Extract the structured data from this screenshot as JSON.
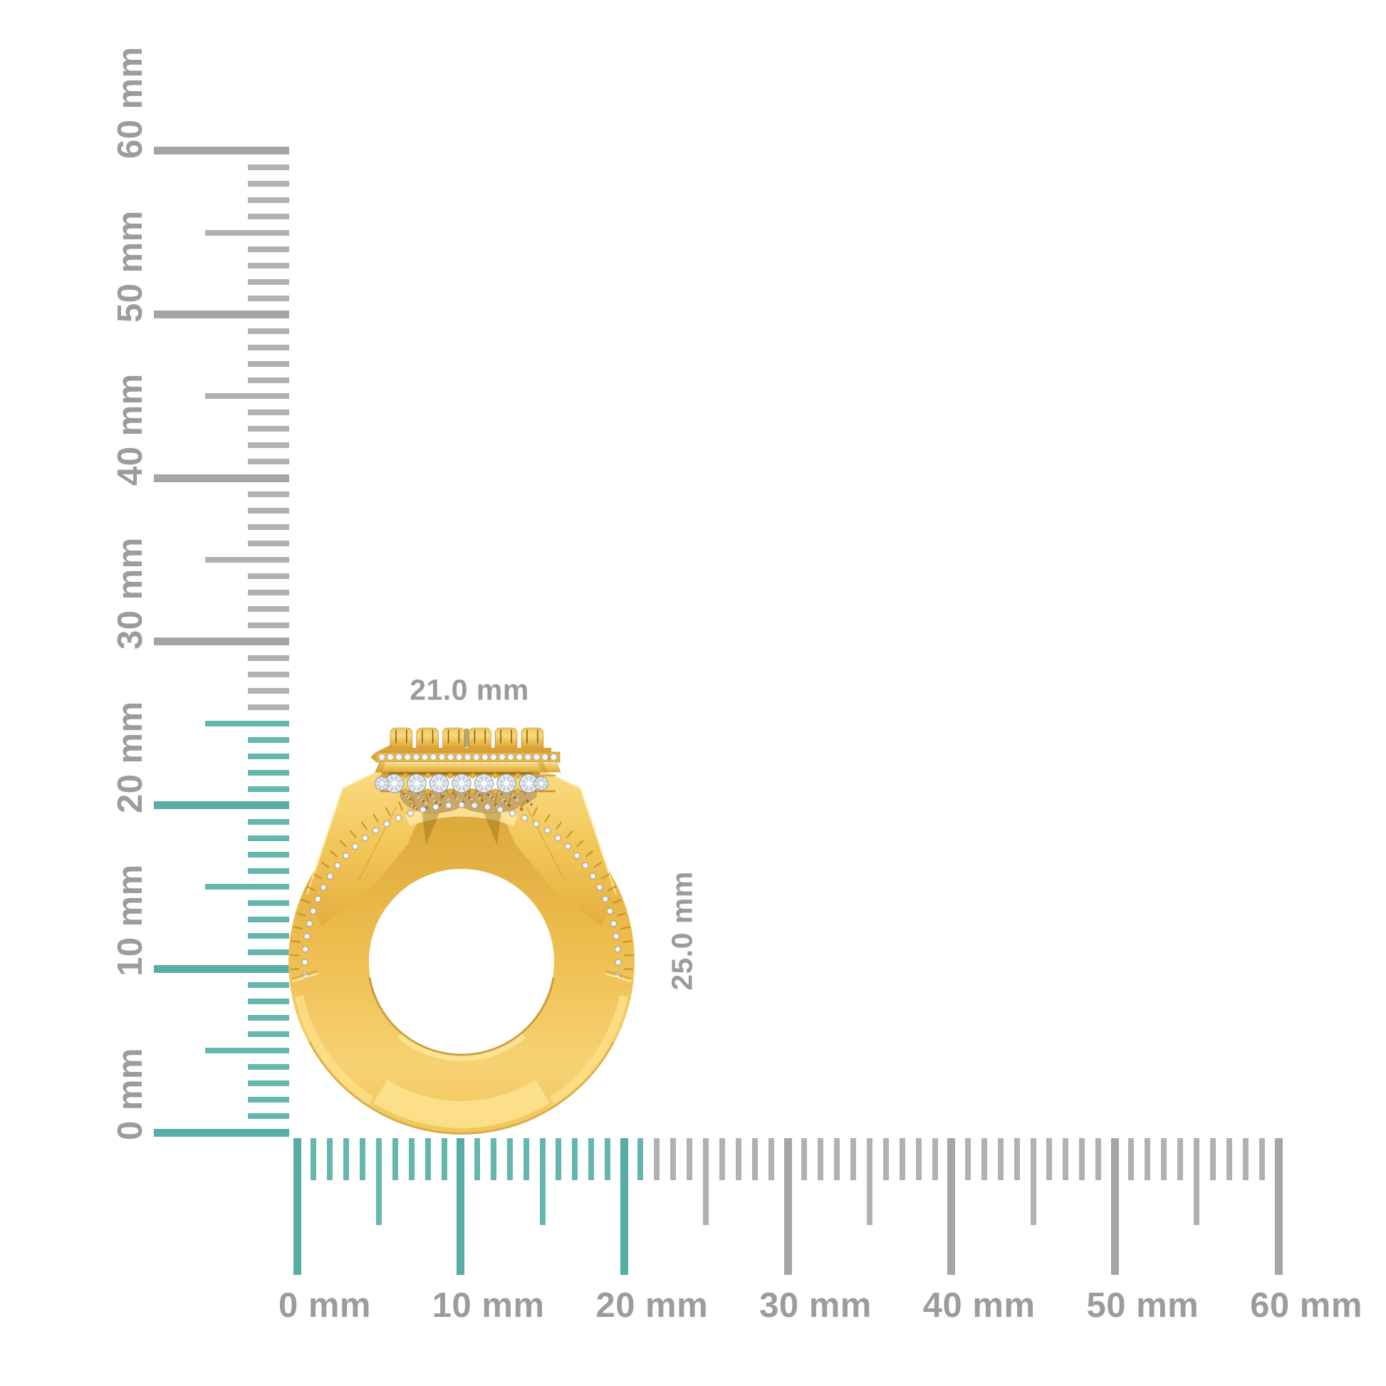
{
  "image": {
    "background": "#ffffff",
    "subject": "yellow gold diamond halo ring, profile view on millimeter grid"
  },
  "dimensions": {
    "width_label": "21.0 mm",
    "height_label": "25.0 mm"
  },
  "rulers": {
    "unit": "mm",
    "vertical": {
      "min_mm": 0,
      "max_mm": 60,
      "major_step_mm": 10,
      "medium_step_mm": 5,
      "highlight_to_mm": 25,
      "labels": [
        "0 mm",
        "10 mm",
        "20 mm",
        "30 mm",
        "40 mm",
        "50 mm",
        "60 mm"
      ]
    },
    "horizontal": {
      "min_mm": 0,
      "max_mm": 60,
      "major_step_mm": 10,
      "medium_step_mm": 5,
      "highlight_to_mm": 21,
      "labels": [
        "0 mm",
        "10 mm",
        "20 mm",
        "30 mm",
        "40 mm",
        "50 mm",
        "60 mm"
      ]
    }
  },
  "ring": {
    "halo_small_diamonds": 21,
    "gallery_diamonds": 7,
    "gallery_end_diamonds": 2,
    "pave_diamonds": 41,
    "crown_prongs": 6
  },
  "colors": {
    "highlight_major": "#58ACA6",
    "highlight_minor": "#66B6B0",
    "gray_major": "#A5A5A5",
    "gray_minor": "#B1B1B1",
    "ruler_label": "#9C9C9C",
    "dimension_label": "#9B9B9B",
    "gold_base": "#F3C65C",
    "gold_light": "#FFEBA8",
    "gold_mid": "#E2AC3C",
    "gold_dark": "#C08A28",
    "gold_deep": "#9A6D1A",
    "stipple": "#C9A767",
    "diamond_body": "#ECEFF4",
    "diamond_line": "#A9B2BF"
  }
}
